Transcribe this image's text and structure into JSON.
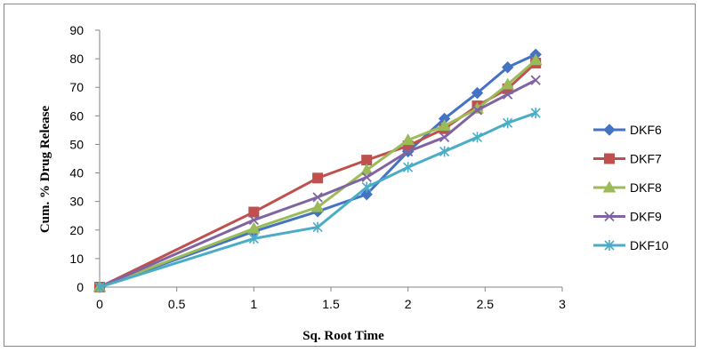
{
  "chart_data": {
    "type": "line",
    "xlabel": "Sq. Root Time",
    "ylabel": "Cum. % Drug Release",
    "xlim": [
      0,
      3
    ],
    "ylim": [
      0,
      90
    ],
    "xticks": [
      "0",
      "0.5",
      "1",
      "1.5",
      "2",
      "2.5",
      "3"
    ],
    "yticks": [
      "0",
      "10",
      "20",
      "30",
      "40",
      "50",
      "60",
      "70",
      "80",
      "90"
    ],
    "grid": false,
    "legend_position": "right",
    "x": [
      0,
      1,
      1.414,
      1.732,
      2,
      2.236,
      2.449,
      2.646,
      2.828
    ],
    "series": [
      {
        "name": "DKF6",
        "color": "#4472C4",
        "marker": "diamond",
        "values": [
          0,
          19.5,
          26.5,
          32.5,
          47.5,
          59,
          68,
          77,
          81.5
        ]
      },
      {
        "name": "DKF7",
        "color": "#C0504D",
        "marker": "square",
        "values": [
          0,
          26.3,
          38.2,
          44.5,
          49.5,
          55.5,
          63.5,
          69.5,
          78.5
        ]
      },
      {
        "name": "DKF8",
        "color": "#9BBB59",
        "marker": "triangle",
        "values": [
          0,
          20.5,
          28,
          41,
          51.5,
          56.5,
          62.5,
          71,
          79.5
        ]
      },
      {
        "name": "DKF9",
        "color": "#8064A2",
        "marker": "x",
        "values": [
          0,
          23.5,
          31.5,
          38.5,
          47.5,
          52.5,
          62,
          67.5,
          72.5
        ]
      },
      {
        "name": "DKF10",
        "color": "#4BACC6",
        "marker": "star",
        "values": [
          0,
          17,
          21,
          35,
          42,
          47.5,
          52.5,
          57.5,
          61
        ]
      }
    ]
  }
}
